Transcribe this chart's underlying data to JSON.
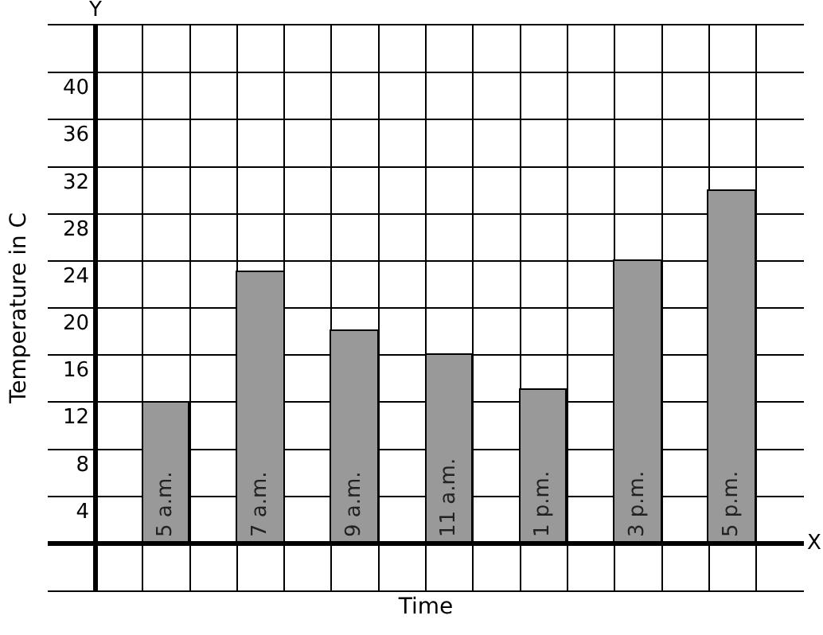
{
  "chart_data": {
    "type": "bar",
    "xlabel": "Time",
    "ylabel": "Temperature in C",
    "categories": [
      "5 a.m.",
      "7 a.m.",
      "9 a.m.",
      "11 a.m.",
      "1 p.m.",
      "3 p.m.",
      "5 p.m."
    ],
    "values": [
      12,
      23,
      18,
      16,
      13,
      24,
      30
    ],
    "color": "#999999",
    "ylim": [
      -4,
      44
    ],
    "yticks": [
      4,
      8,
      12,
      16,
      20,
      24,
      28,
      32,
      36,
      40
    ],
    "grid": true,
    "tick_labels": "y",
    "annotations": [
      "Y",
      "X"
    ]
  }
}
